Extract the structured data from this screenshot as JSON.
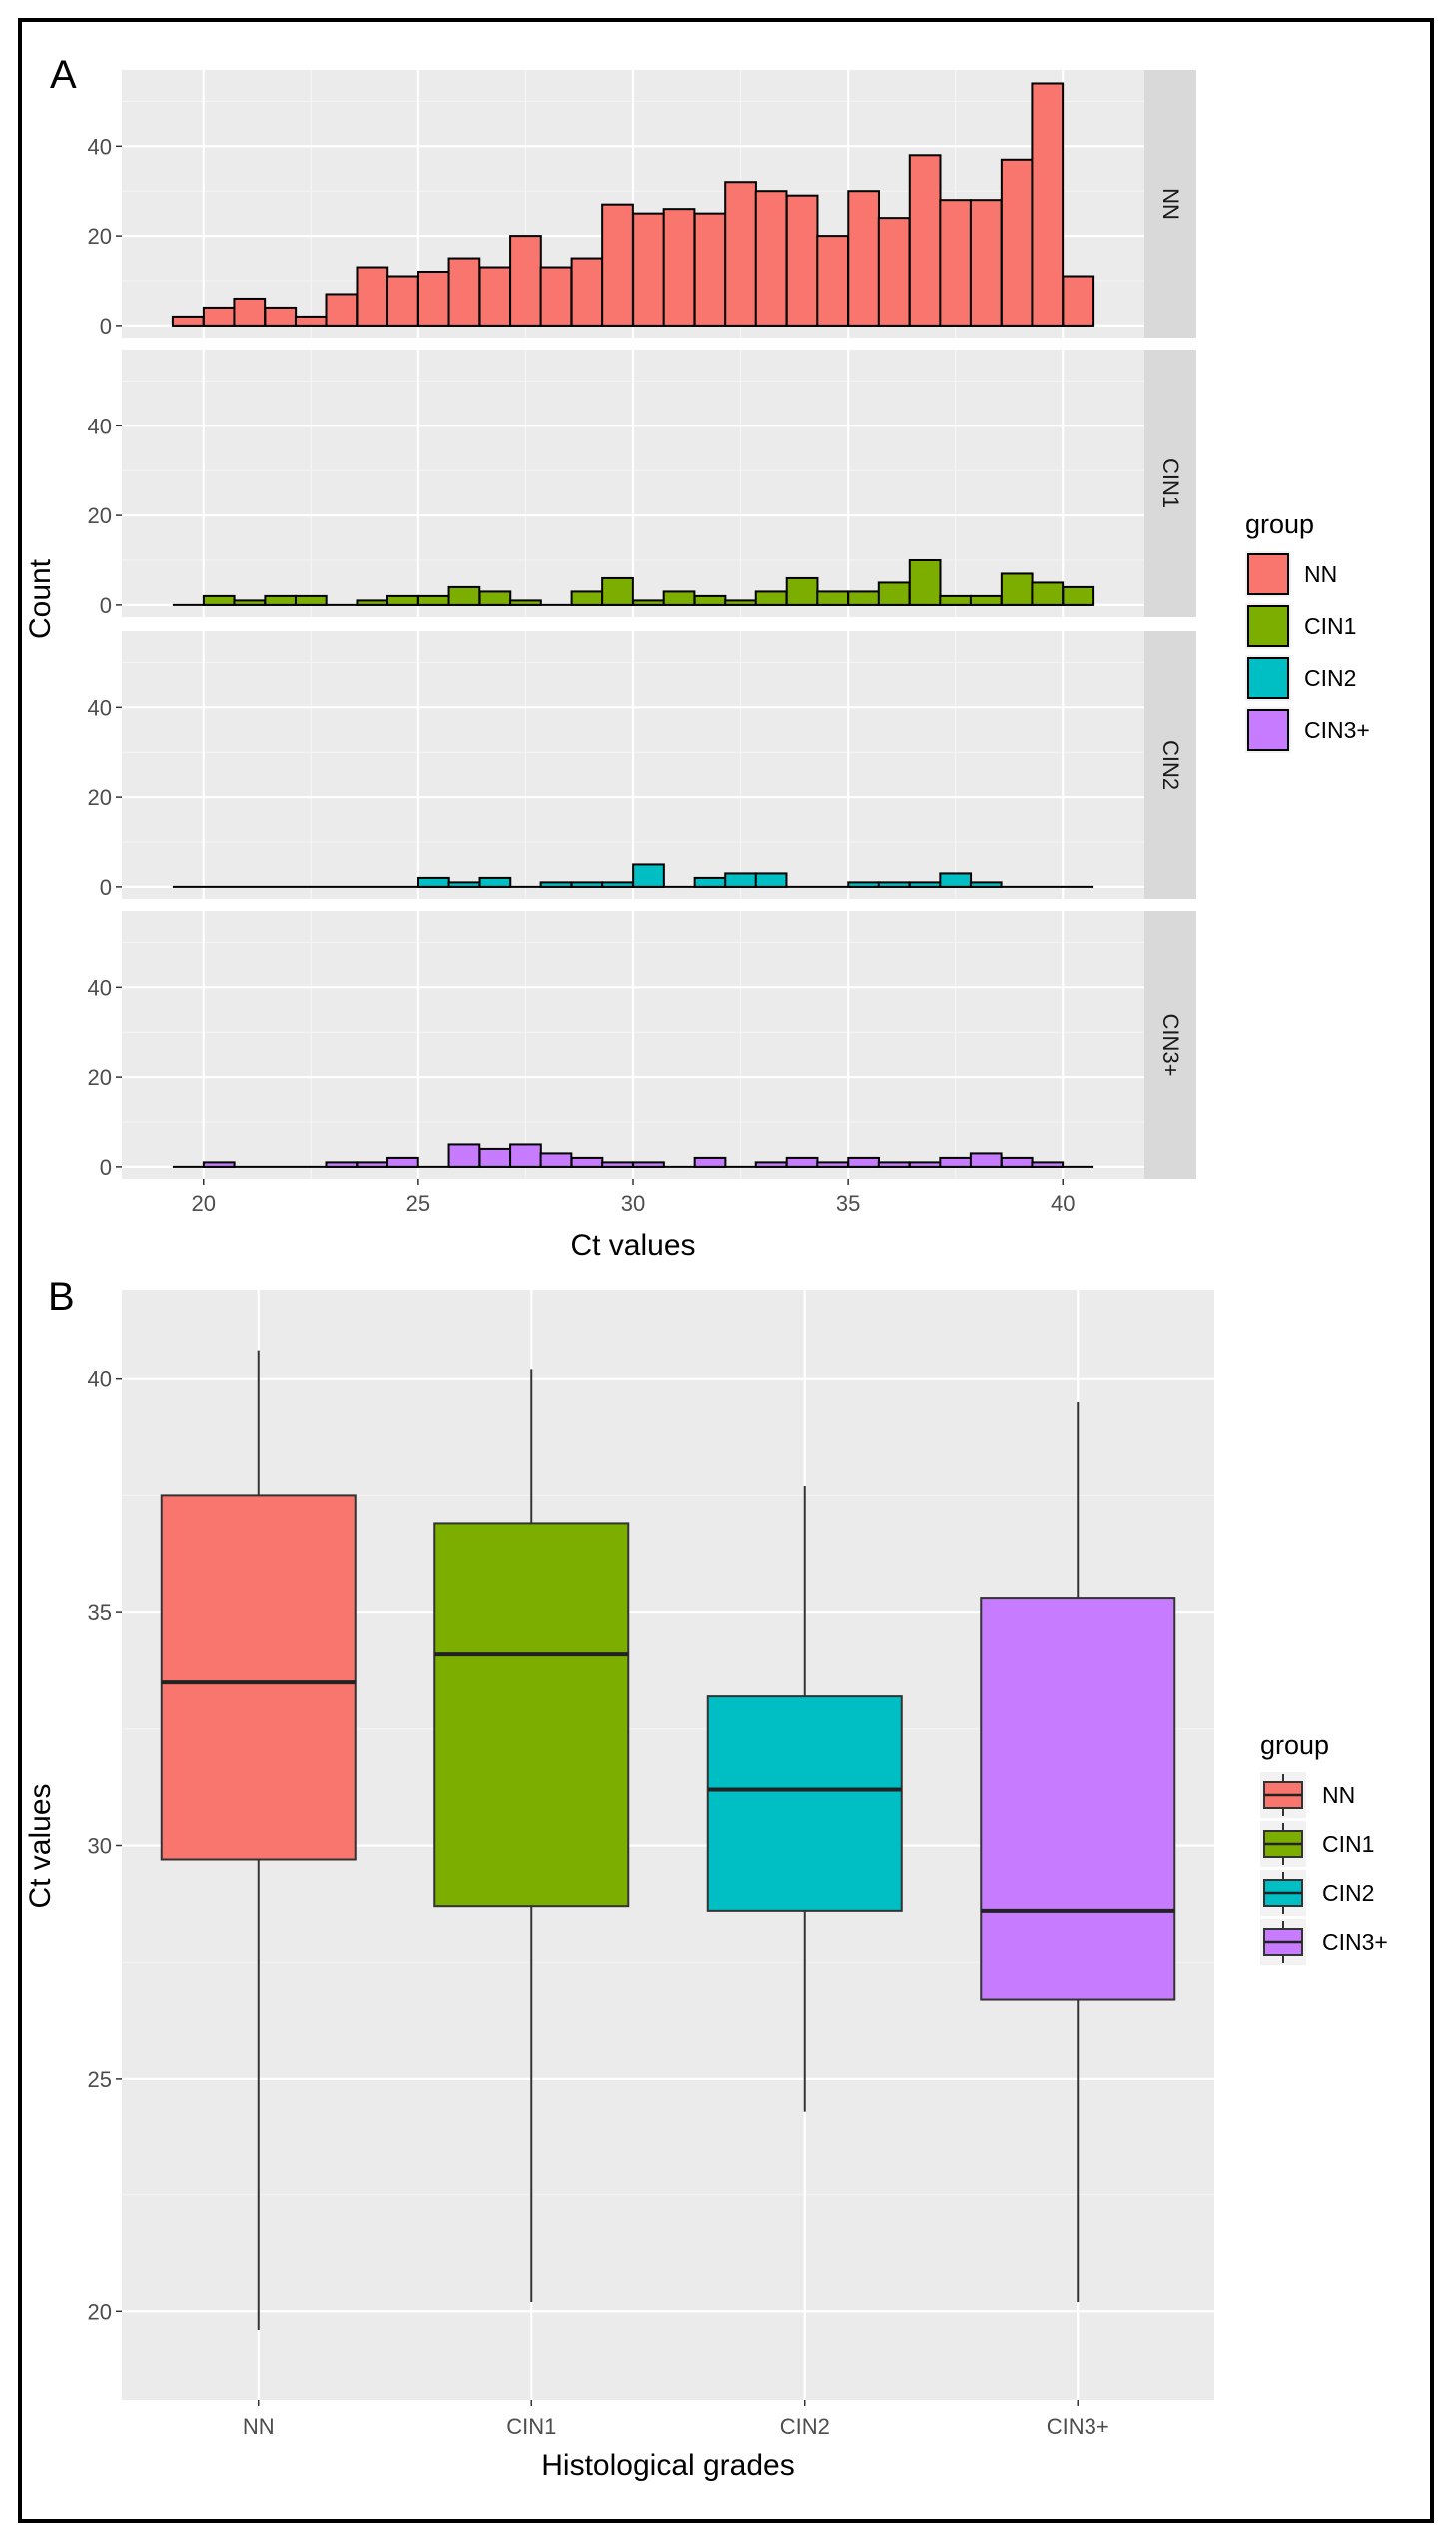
{
  "chart_data": [
    {
      "panel": "A",
      "type": "bar",
      "subtype": "faceted histogram",
      "xlabel": "Ct values",
      "ylabel": "Count",
      "xlim": [
        18.1,
        41.9
      ],
      "ylim": [
        -2.7,
        57
      ],
      "x_ticks": [
        20,
        25,
        30,
        35,
        40
      ],
      "y_ticks": [
        0,
        20,
        40
      ],
      "bin_width": 0.714,
      "bin_centers": [
        19.64,
        20.36,
        21.07,
        21.79,
        22.5,
        23.21,
        23.93,
        24.64,
        25.36,
        26.07,
        26.79,
        27.5,
        28.21,
        28.93,
        29.64,
        30.36,
        31.07,
        31.79,
        32.5,
        33.21,
        33.93,
        34.64,
        35.36,
        36.07,
        36.79,
        37.5,
        38.21,
        38.93,
        39.64,
        40.36
      ],
      "series": [
        {
          "name": "NN",
          "color": "#F8766D",
          "values": [
            2,
            4,
            6,
            4,
            2,
            7,
            13,
            11,
            12,
            15,
            13,
            20,
            13,
            15,
            27,
            25,
            26,
            25,
            32,
            30,
            29,
            20,
            30,
            24,
            38,
            28,
            28,
            37,
            54,
            11
          ]
        },
        {
          "name": "CIN1",
          "color": "#7CAE00",
          "values": [
            0,
            2,
            1,
            2,
            2,
            0,
            1,
            2,
            2,
            4,
            3,
            1,
            0,
            3,
            6,
            1,
            3,
            2,
            1,
            3,
            6,
            3,
            3,
            5,
            10,
            2,
            2,
            7,
            5,
            4
          ]
        },
        {
          "name": "CIN2",
          "color": "#00BFC4",
          "values": [
            0,
            0,
            0,
            0,
            0,
            0,
            0,
            0,
            2,
            1,
            2,
            0,
            1,
            1,
            1,
            5,
            0,
            2,
            3,
            3,
            0,
            0,
            1,
            1,
            1,
            3,
            1,
            0,
            0,
            0
          ]
        },
        {
          "name": "CIN3+",
          "color": "#C77CFF",
          "values": [
            0,
            1,
            0,
            0,
            0,
            1,
            1,
            2,
            0,
            5,
            4,
            5,
            3,
            2,
            1,
            1,
            0,
            2,
            0,
            1,
            2,
            1,
            2,
            1,
            1,
            2,
            3,
            2,
            1,
            0
          ]
        }
      ],
      "legend": {
        "title": "group",
        "entries": [
          "NN",
          "CIN1",
          "CIN2",
          "CIN3+"
        ]
      }
    },
    {
      "panel": "B",
      "type": "boxplot",
      "xlabel": "Histological grades",
      "ylabel": "Ct values",
      "ylim": [
        18.1,
        41.9
      ],
      "y_ticks": [
        20,
        25,
        30,
        35,
        40
      ],
      "categories": [
        "NN",
        "CIN1",
        "CIN2",
        "CIN3+"
      ],
      "boxes": [
        {
          "name": "NN",
          "color": "#F8766D",
          "whisker_low": 19.6,
          "q1": 29.7,
          "median": 33.5,
          "q3": 37.5,
          "whisker_high": 40.6
        },
        {
          "name": "CIN1",
          "color": "#7CAE00",
          "whisker_low": 20.2,
          "q1": 28.7,
          "median": 34.1,
          "q3": 36.9,
          "whisker_high": 40.2
        },
        {
          "name": "CIN2",
          "color": "#00BFC4",
          "whisker_low": 24.3,
          "q1": 28.6,
          "median": 31.2,
          "q3": 33.2,
          "whisker_high": 37.7
        },
        {
          "name": "CIN3+",
          "color": "#C77CFF",
          "whisker_low": 20.2,
          "q1": 26.7,
          "median": 28.6,
          "q3": 35.3,
          "whisker_high": 39.5
        }
      ],
      "legend": {
        "title": "group",
        "entries": [
          "NN",
          "CIN1",
          "CIN2",
          "CIN3+"
        ]
      }
    }
  ]
}
